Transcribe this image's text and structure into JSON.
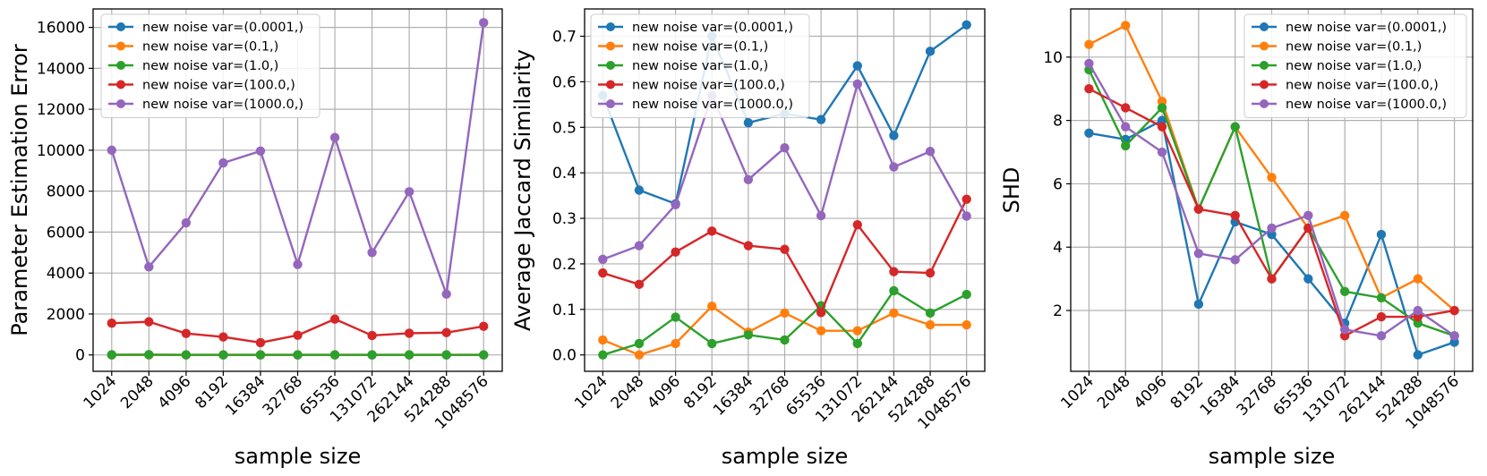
{
  "chart_data": [
    {
      "type": "line",
      "title": "",
      "xlabel": "sample size",
      "ylabel": "Parameter Estimation Error",
      "categories": [
        "1024",
        "2048",
        "4096",
        "8192",
        "16384",
        "32768",
        "65536",
        "131072",
        "262144",
        "524288",
        "1048576"
      ],
      "ylim": [
        -800,
        16900
      ],
      "yticks": [
        0,
        2000,
        4000,
        6000,
        8000,
        10000,
        12000,
        14000,
        16000
      ],
      "grid": true,
      "legend_position": "upper-left",
      "series": [
        {
          "name": "new noise var=(0.0001,)",
          "color": "#1f77b4",
          "values": [
            2,
            2,
            2,
            2,
            2,
            2,
            2,
            2,
            2,
            2,
            2
          ]
        },
        {
          "name": "new noise var=(0.1,)",
          "color": "#ff7f0e",
          "values": [
            3,
            3,
            3,
            3,
            3,
            3,
            3,
            3,
            3,
            3,
            3
          ]
        },
        {
          "name": "new noise var=(1.0,)",
          "color": "#2ca02c",
          "values": [
            10,
            15,
            5,
            5,
            5,
            5,
            5,
            5,
            5,
            5,
            5
          ]
        },
        {
          "name": "new noise var=(100.0,)",
          "color": "#d62728",
          "values": [
            1550,
            1620,
            1050,
            880,
            600,
            960,
            1750,
            950,
            1060,
            1090,
            1400
          ]
        },
        {
          "name": "new noise var=(1000.0,)",
          "color": "#9467bd",
          "values": [
            10000,
            4300,
            6450,
            9380,
            9960,
            4420,
            10620,
            5000,
            7970,
            2970,
            16230
          ]
        }
      ]
    },
    {
      "type": "line",
      "title": "",
      "xlabel": "sample size",
      "ylabel": "Average Jaccard Similarity",
      "categories": [
        "1024",
        "2048",
        "4096",
        "8192",
        "16384",
        "32768",
        "65536",
        "131072",
        "262144",
        "524288",
        "1048576"
      ],
      "ylim": [
        -0.036,
        0.76
      ],
      "yticks": [
        0.0,
        0.1,
        0.2,
        0.3,
        0.4,
        0.5,
        0.6,
        0.7
      ],
      "grid": true,
      "legend_position": "upper-left",
      "series": [
        {
          "name": "new noise var=(0.0001,)",
          "color": "#1f77b4",
          "values": [
            0.57,
            0.362,
            0.332,
            0.7,
            0.51,
            0.53,
            0.517,
            0.635,
            0.482,
            0.667,
            0.725
          ]
        },
        {
          "name": "new noise var=(0.1,)",
          "color": "#ff7f0e",
          "values": [
            0.033,
            0.0,
            0.025,
            0.107,
            0.05,
            0.092,
            0.053,
            0.053,
            0.092,
            0.066,
            0.066
          ]
        },
        {
          "name": "new noise var=(1.0,)",
          "color": "#2ca02c",
          "values": [
            0.0,
            0.025,
            0.083,
            0.025,
            0.044,
            0.033,
            0.108,
            0.025,
            0.141,
            0.092,
            0.133
          ]
        },
        {
          "name": "new noise var=(100.0,)",
          "color": "#d62728",
          "values": [
            0.18,
            0.155,
            0.226,
            0.272,
            0.24,
            0.232,
            0.093,
            0.286,
            0.183,
            0.18,
            0.342
          ]
        },
        {
          "name": "new noise var=(1000.0,)",
          "color": "#9467bd",
          "values": [
            0.21,
            0.24,
            0.33,
            0.57,
            0.385,
            0.455,
            0.306,
            0.595,
            0.413,
            0.447,
            0.305
          ]
        }
      ]
    },
    {
      "type": "line",
      "title": "",
      "xlabel": "sample size",
      "ylabel": "SHD",
      "categories": [
        "1024",
        "2048",
        "4096",
        "8192",
        "16384",
        "32768",
        "65536",
        "131072",
        "262144",
        "524288",
        "1048576"
      ],
      "ylim": [
        0.08,
        11.52
      ],
      "yticks": [
        2,
        4,
        6,
        8,
        10
      ],
      "grid": true,
      "legend_position": "upper-right",
      "series": [
        {
          "name": "new noise var=(0.0001,)",
          "color": "#1f77b4",
          "values": [
            7.6,
            7.4,
            8.0,
            2.2,
            4.8,
            4.4,
            3.0,
            1.6,
            4.4,
            0.6,
            1.0
          ]
        },
        {
          "name": "new noise var=(0.1,)",
          "color": "#ff7f0e",
          "values": [
            10.4,
            11.0,
            8.6,
            5.2,
            7.8,
            6.2,
            4.6,
            5.0,
            2.4,
            3.0,
            2.0
          ]
        },
        {
          "name": "new noise var=(1.0,)",
          "color": "#2ca02c",
          "values": [
            9.6,
            7.2,
            8.4,
            5.2,
            7.8,
            3.0,
            4.6,
            2.6,
            2.4,
            1.6,
            1.2
          ]
        },
        {
          "name": "new noise var=(100.0,)",
          "color": "#d62728",
          "values": [
            9.0,
            8.4,
            7.8,
            5.2,
            5.0,
            3.0,
            4.6,
            1.2,
            1.8,
            1.8,
            2.0
          ]
        },
        {
          "name": "new noise var=(1000.0,)",
          "color": "#9467bd",
          "values": [
            9.8,
            7.8,
            7.0,
            3.8,
            3.6,
            4.6,
            5.0,
            1.4,
            1.2,
            2.0,
            1.2
          ]
        }
      ]
    }
  ]
}
